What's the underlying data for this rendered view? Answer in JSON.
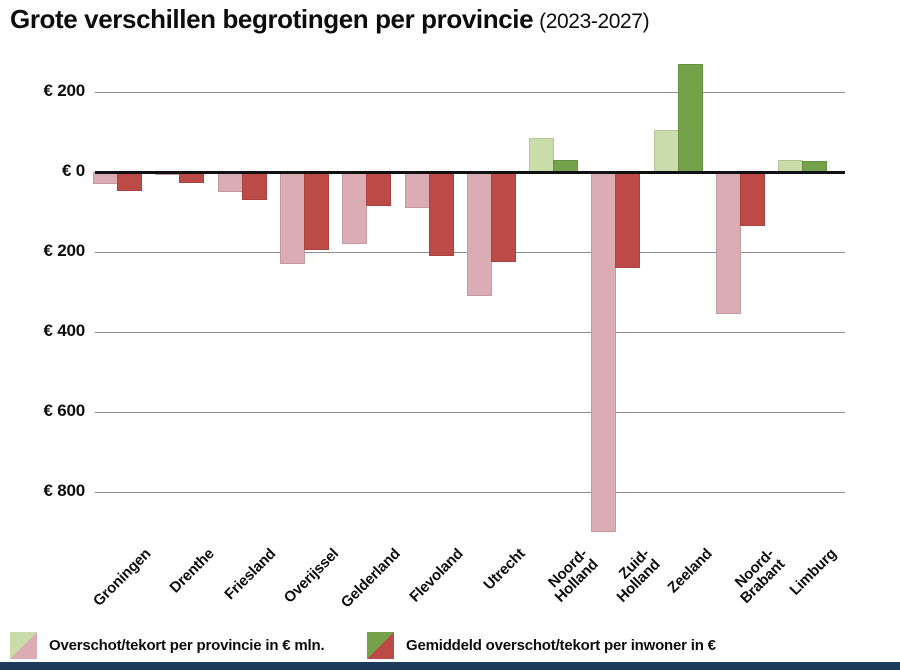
{
  "title": {
    "main": "Grote verschillen begrotingen per provincie",
    "period": "(2023-2027)"
  },
  "chart_data": {
    "type": "bar",
    "categories": [
      "Groningen",
      "Drenthe",
      "Friesland",
      "Overijssel",
      "Gelderland",
      "Flevoland",
      "Utrecht",
      "Noord-Holland",
      "Zuid-Holland",
      "Zeeland",
      "Noord-Brabant",
      "Limburg"
    ],
    "category_display": [
      [
        "Groningen"
      ],
      [
        "Drenthe"
      ],
      [
        "Friesland"
      ],
      [
        "Overijssel"
      ],
      [
        "Gelderland"
      ],
      [
        "Flevoland"
      ],
      [
        "Utrecht"
      ],
      [
        "Noord-",
        "Holland"
      ],
      [
        "Zuid-",
        "Holland"
      ],
      [
        "Zeeland"
      ],
      [
        "Noord-",
        "Brabant"
      ],
      [
        "Limburg"
      ]
    ],
    "series": [
      {
        "name": "Overschot/tekort per provincie in € mln.",
        "values": [
          -30,
          -8,
          -50,
          -230,
          -180,
          -90,
          -310,
          85,
          -900,
          105,
          -355,
          30
        ]
      },
      {
        "name": "Gemiddeld overschot/tekort per inwoner in €",
        "values": [
          -48,
          -27,
          -70,
          -195,
          -85,
          -210,
          -225,
          30,
          -240,
          270,
          -135,
          28
        ]
      }
    ],
    "y_axis": {
      "tick_values": [
        200,
        0,
        -200,
        -400,
        -600,
        -800
      ],
      "tick_labels": [
        "€ 200",
        "€ 0",
        "€ 200",
        "€ 400",
        "€ 600",
        "€ 800"
      ],
      "ylim": [
        280,
        -910
      ],
      "note": "deficits plotted downward, axis labels shown as absolute amounts"
    },
    "grid": true,
    "legend_position": "bottom",
    "title": "Grote verschillen begrotingen per provincie (2023-2027)"
  },
  "legend": {
    "items": [
      {
        "label": "Overschot/tekort per provincie in € mln.",
        "surplus_color": "#c9dcaa",
        "deficit_color": "#dbacb4"
      },
      {
        "label": "Gemiddeld overschot/tekort per inwoner in €",
        "surplus_color": "#74a14a",
        "deficit_color": "#bc4b47"
      }
    ]
  },
  "colors": {
    "surplus_light": "#c9dcaa",
    "deficit_light": "#dbacb4",
    "surplus_dark": "#74a14a",
    "deficit_dark": "#bc4b47",
    "gridline": "#8f8f8f",
    "zero_line": "#111111",
    "footer_bar": "#1d3c5c",
    "text": "#0d0d0d"
  }
}
